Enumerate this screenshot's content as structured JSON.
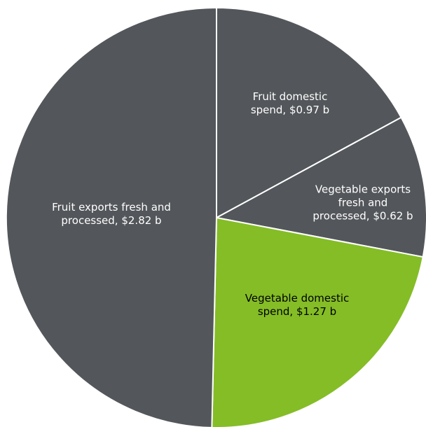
{
  "chart_data": {
    "type": "pie",
    "title": "",
    "unit": "$ b",
    "slices": [
      {
        "name": "Fruit domestic spend",
        "value": 0.97,
        "label_lines": [
          "Fruit domestic",
          "spend, $0.97 b"
        ],
        "color": "#53565a",
        "label_color": "#ffffff"
      },
      {
        "name": "Vegetable exports fresh and processed",
        "value": 0.62,
        "label_lines": [
          "Vegetable exports",
          "fresh and",
          "processed, $0.62 b"
        ],
        "color": "#53565a",
        "label_color": "#ffffff"
      },
      {
        "name": "Vegetable domestic spend",
        "value": 1.27,
        "label_lines": [
          "Vegetable domestic",
          "spend, $1.27 b"
        ],
        "color": "#84bd26",
        "label_color": "#000000"
      },
      {
        "name": "Fruit exports fresh and processed",
        "value": 2.82,
        "label_lines": [
          "Fruit exports fresh and",
          "processed, $2.82 b"
        ],
        "color": "#53565a",
        "label_color": "#ffffff"
      }
    ],
    "start_angle_deg": 0,
    "direction": "clockwise",
    "separator_color": "#ffffff",
    "legend": "none"
  }
}
